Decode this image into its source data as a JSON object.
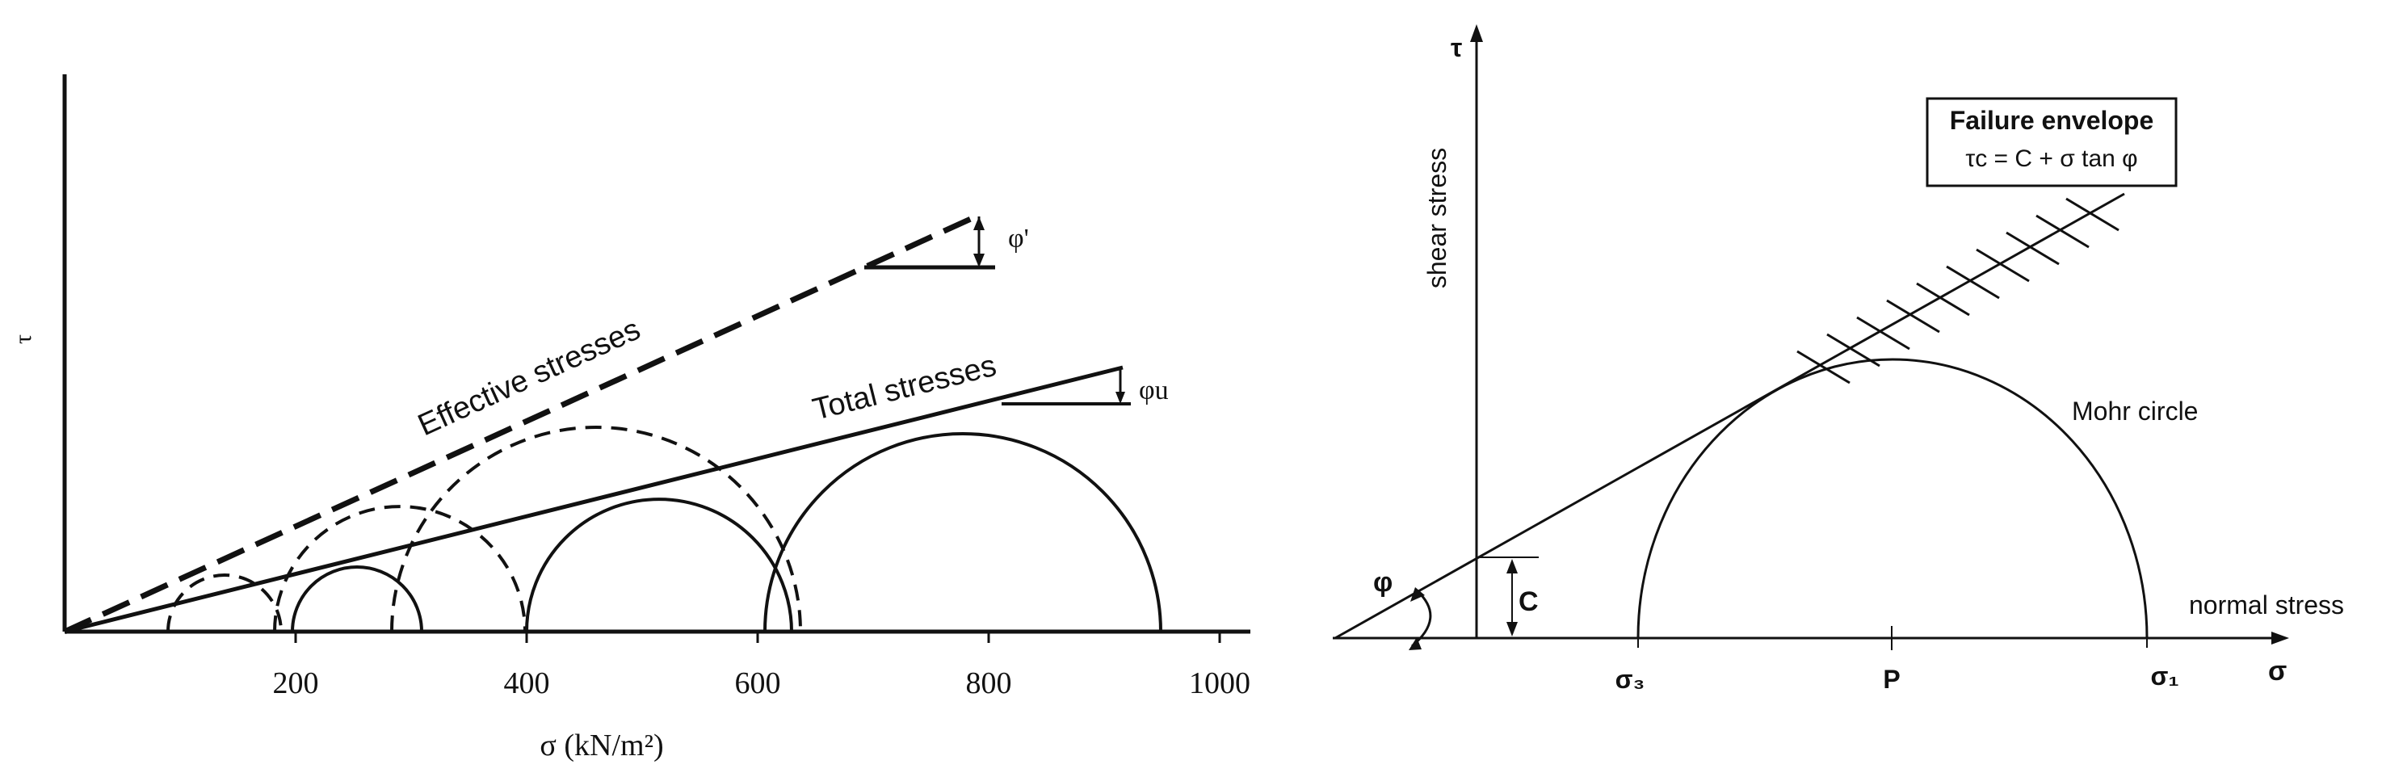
{
  "left_panel": {
    "y_axis_symbol": "τ",
    "x_axis_label": "σ (kN/m²)",
    "x_tick_labels": [
      "200",
      "400",
      "600",
      "800",
      "1000"
    ],
    "effective_label": "Effective stresses",
    "total_label": "Total stresses",
    "phi_prime_label": "φ'",
    "phi_u_label": "φu"
  },
  "right_panel": {
    "tau_label": "τ",
    "shear_stress_label": "shear stress",
    "normal_stress_label": "normal stress",
    "sigma_label": "σ",
    "sigma3_label": "σ₃",
    "p_label": "P",
    "sigma1_label": "σ₁",
    "c_label": "C",
    "phi_label": "φ",
    "mohr_circle_label": "Mohr circle",
    "failure_envelope_title": "Failure envelope",
    "failure_envelope_equation": "τc = C + σ tan φ"
  }
}
